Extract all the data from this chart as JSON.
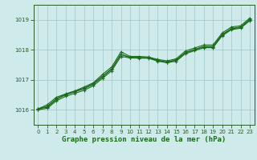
{
  "title": "Graphe pression niveau de la mer (hPa)",
  "bg_color": "#ceeaea",
  "grid_color": "#a8cccc",
  "line_color": "#1a6b1a",
  "spine_color": "#2a5a2a",
  "xlim": [
    -0.5,
    23.5
  ],
  "ylim": [
    1015.5,
    1019.5
  ],
  "yticks": [
    1016,
    1017,
    1018,
    1019
  ],
  "xticks": [
    0,
    1,
    2,
    3,
    4,
    5,
    6,
    7,
    8,
    9,
    10,
    11,
    12,
    13,
    14,
    15,
    16,
    17,
    18,
    19,
    20,
    21,
    22,
    23
  ],
  "tick_fontsize": 5.0,
  "label_fontsize": 6.5,
  "series": [
    [
      1016.0,
      1016.05,
      1016.3,
      1016.45,
      1016.55,
      1016.65,
      1016.8,
      1017.05,
      1017.3,
      1017.78,
      1017.73,
      1017.72,
      1017.72,
      1017.62,
      1017.57,
      1017.62,
      1017.87,
      1017.97,
      1018.07,
      1018.07,
      1018.47,
      1018.67,
      1018.72,
      1018.97
    ],
    [
      1016.02,
      1016.12,
      1016.37,
      1016.52,
      1016.62,
      1016.72,
      1016.87,
      1017.12,
      1017.37,
      1017.85,
      1017.75,
      1017.74,
      1017.73,
      1017.64,
      1017.59,
      1017.66,
      1017.91,
      1018.01,
      1018.11,
      1018.11,
      1018.51,
      1018.71,
      1018.76,
      1019.01
    ],
    [
      1016.03,
      1016.17,
      1016.42,
      1016.53,
      1016.63,
      1016.76,
      1016.9,
      1017.18,
      1017.43,
      1017.93,
      1017.78,
      1017.78,
      1017.76,
      1017.68,
      1017.63,
      1017.7,
      1017.96,
      1018.06,
      1018.16,
      1018.16,
      1018.56,
      1018.76,
      1018.8,
      1019.06
    ],
    [
      1016.04,
      1016.08,
      1016.35,
      1016.5,
      1016.6,
      1016.7,
      1016.85,
      1017.1,
      1017.35,
      1017.85,
      1017.74,
      1017.74,
      1017.74,
      1017.65,
      1017.59,
      1017.66,
      1017.9,
      1018.0,
      1018.1,
      1018.1,
      1018.5,
      1018.7,
      1018.75,
      1019.0
    ]
  ]
}
